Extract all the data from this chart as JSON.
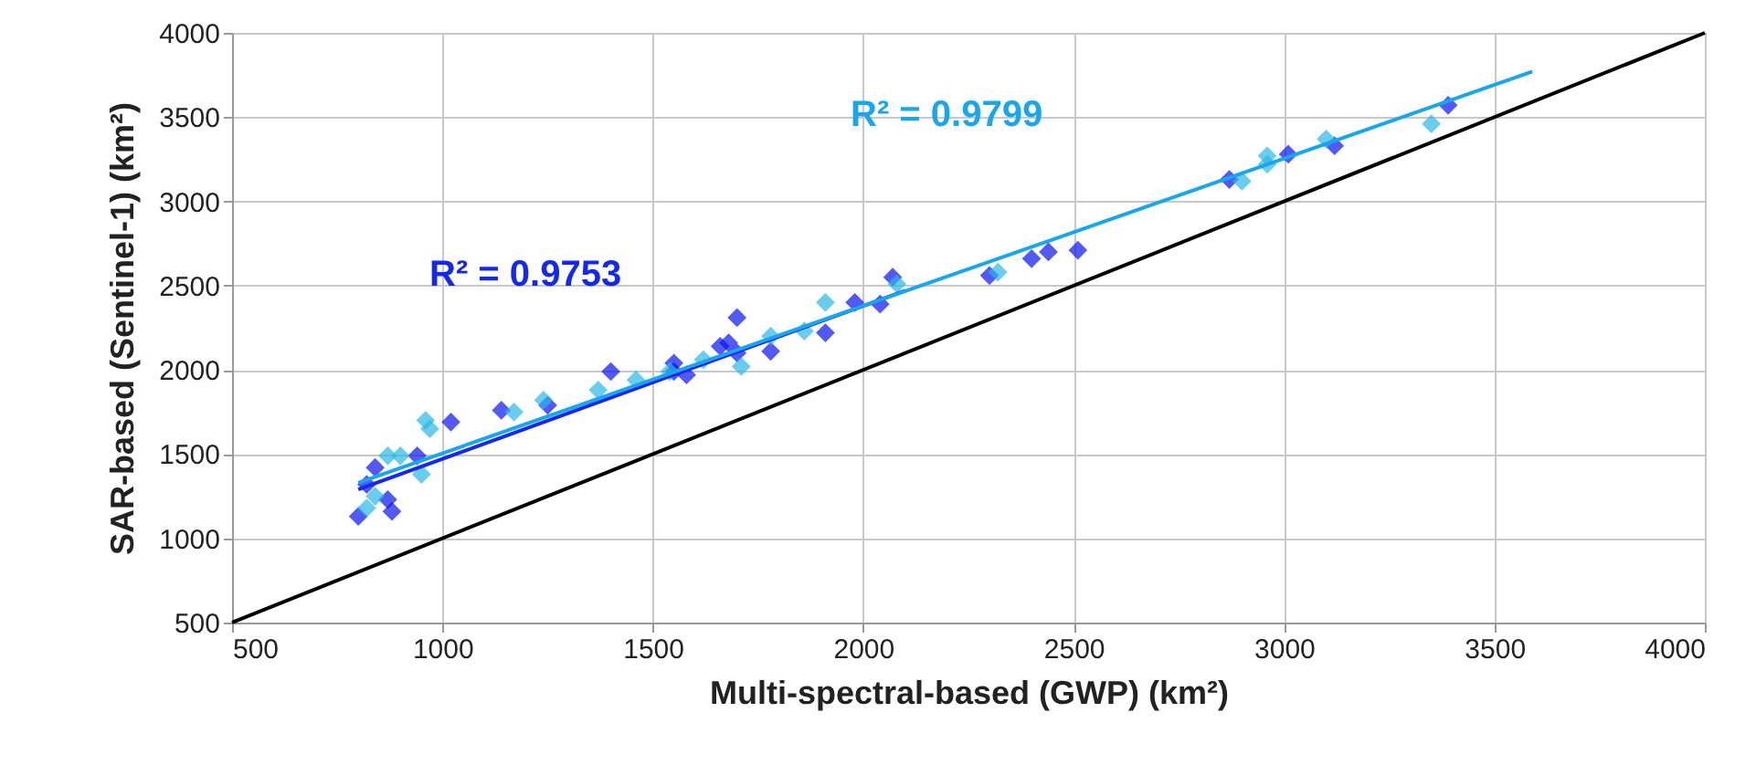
{
  "chart_data": {
    "type": "scatter",
    "xlabel": "Multi-spectral-based (GWP) (km²)",
    "ylabel": "SAR-based (Sentinel-1) (km²)",
    "xlim": [
      500,
      4000
    ],
    "ylim": [
      500,
      4000
    ],
    "xticks": [
      500,
      1000,
      1500,
      2000,
      2500,
      3000,
      3500,
      4000
    ],
    "yticks": [
      500,
      1000,
      1500,
      2000,
      2500,
      3000,
      3500,
      4000
    ],
    "grid": true,
    "marker": "diamond",
    "series": [
      {
        "type": "line",
        "marker": "none",
        "color": "#000000",
        "x": [
          500,
          4000
        ],
        "values": [
          500,
          4000
        ]
      },
      {
        "color": "#0a14f0",
        "x": [
          800,
          820,
          840,
          870,
          880,
          940,
          1020,
          1140,
          1250,
          1400,
          1550,
          1550,
          1580,
          1660,
          1680,
          1700,
          1700,
          1780,
          1910,
          1980,
          2040,
          2070,
          2300,
          2400,
          2440,
          2510,
          2870,
          3010,
          3120,
          3390
        ],
        "values": [
          1130,
          1320,
          1420,
          1230,
          1160,
          1490,
          1690,
          1760,
          1790,
          1990,
          2040,
          1990,
          1970,
          2140,
          2160,
          2310,
          2100,
          2110,
          2220,
          2400,
          2390,
          2550,
          2560,
          2660,
          2700,
          2710,
          3130,
          3280,
          3330,
          3570
        ]
      },
      {
        "color": "#2bb8e6",
        "x": [
          820,
          840,
          870,
          900,
          950,
          960,
          970,
          1170,
          1240,
          1370,
          1460,
          1540,
          1620,
          1710,
          1780,
          1860,
          1910,
          2080,
          2320,
          2900,
          2960,
          2960,
          3100,
          3350
        ],
        "values": [
          1180,
          1250,
          1490,
          1490,
          1380,
          1700,
          1650,
          1750,
          1820,
          1880,
          1940,
          1990,
          2060,
          2020,
          2200,
          2230,
          2400,
          2510,
          2580,
          3120,
          3270,
          3220,
          3370,
          3460
        ]
      },
      {
        "type": "line",
        "marker": "none",
        "color": "#1428f0",
        "x": [
          800,
          2100
        ],
        "values": [
          1290,
          2470
        ]
      },
      {
        "type": "line",
        "marker": "none",
        "color": "#1aa6ea",
        "x": [
          800,
          3590
        ],
        "values": [
          1330,
          3770
        ]
      }
    ],
    "annotations": [
      "R² = 0.9753",
      "R² = 0.9799"
    ]
  }
}
